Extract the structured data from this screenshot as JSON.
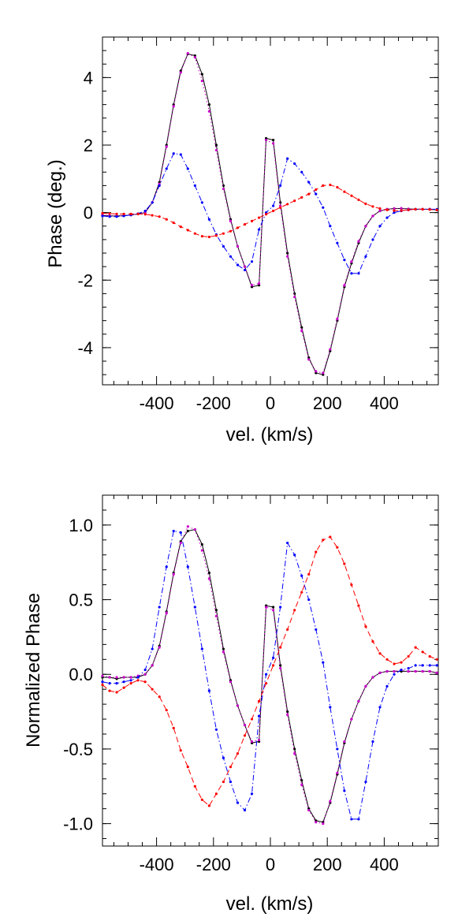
{
  "chart_data": [
    {
      "type": "line",
      "xlabel": "vel. (km/s)",
      "ylabel": "Phase (deg.)",
      "xlim": [
        -590,
        590
      ],
      "ylim": [
        -5.1,
        5.2
      ],
      "x_ticks": [
        -400,
        -200,
        0,
        200,
        400
      ],
      "y_ticks": [
        -4,
        -2,
        0,
        2,
        4
      ],
      "x_tick_labels": [
        "-400",
        "-200",
        "0",
        "200",
        "400"
      ],
      "y_tick_labels": [
        "-4",
        "-2",
        "0",
        "2",
        "4"
      ],
      "grid": false,
      "legend": "none",
      "x": [
        -590,
        -565,
        -540,
        -515,
        -490,
        -465,
        -440,
        -415,
        -390,
        -365,
        -340,
        -315,
        -290,
        -265,
        -240,
        -215,
        -190,
        -165,
        -140,
        -115,
        -90,
        -65,
        -40,
        -15,
        10,
        35,
        60,
        85,
        110,
        135,
        160,
        185,
        210,
        235,
        260,
        285,
        310,
        335,
        360,
        385,
        410,
        435,
        460,
        485,
        510,
        535,
        560,
        585
      ],
      "series": [
        {
          "color": "#000000",
          "style": "solid",
          "values": [
            -0.08,
            -0.1,
            -0.1,
            -0.09,
            -0.07,
            -0.04,
            0.0,
            0.3,
            0.9,
            2.0,
            3.2,
            4.2,
            4.7,
            4.65,
            4.1,
            3.2,
            2.0,
            0.8,
            -0.2,
            -1.0,
            -1.6,
            -2.2,
            -2.15,
            2.2,
            2.15,
            0.3,
            -1.2,
            -2.4,
            -3.4,
            -4.3,
            -4.75,
            -4.8,
            -4.1,
            -3.2,
            -2.2,
            -1.5,
            -0.9,
            -0.4,
            -0.1,
            0.05,
            0.1,
            0.12,
            0.12,
            0.11,
            0.1,
            0.1,
            0.1,
            0.08
          ]
        },
        {
          "color": "#cc00cc",
          "style": "dotted",
          "values": [
            -0.07,
            -0.09,
            -0.1,
            -0.09,
            -0.07,
            -0.04,
            0.0,
            0.3,
            0.85,
            1.95,
            3.15,
            4.15,
            4.72,
            4.6,
            3.9,
            3.0,
            1.85,
            0.7,
            -0.25,
            -1.0,
            -1.6,
            -2.15,
            -2.1,
            2.15,
            2.05,
            0.2,
            -1.3,
            -2.5,
            -3.5,
            -4.35,
            -4.7,
            -4.75,
            -4.05,
            -3.15,
            -2.15,
            -1.45,
            -0.85,
            -0.4,
            -0.1,
            0.05,
            0.1,
            0.12,
            0.13,
            0.11,
            0.1,
            0.1,
            0.1,
            0.08
          ]
        },
        {
          "color": "#0000ff",
          "style": "dashdot",
          "values": [
            -0.1,
            -0.12,
            -0.12,
            -0.1,
            -0.07,
            -0.03,
            0.05,
            0.3,
            0.8,
            1.3,
            1.75,
            1.72,
            1.3,
            0.8,
            0.3,
            -0.2,
            -0.65,
            -1.0,
            -1.3,
            -1.55,
            -1.7,
            -1.45,
            -0.5,
            0.0,
            0.2,
            0.8,
            1.6,
            1.45,
            1.2,
            0.9,
            0.55,
            0.15,
            -0.4,
            -0.9,
            -1.4,
            -1.8,
            -1.8,
            -1.3,
            -0.8,
            -0.4,
            -0.15,
            0.0,
            0.05,
            0.08,
            0.1,
            0.1,
            0.1,
            0.1
          ]
        },
        {
          "color": "#ff0000",
          "style": "dashed",
          "values": [
            -0.02,
            -0.03,
            -0.04,
            -0.04,
            -0.04,
            -0.04,
            -0.05,
            -0.08,
            -0.12,
            -0.2,
            -0.3,
            -0.42,
            -0.52,
            -0.62,
            -0.7,
            -0.72,
            -0.68,
            -0.62,
            -0.55,
            -0.45,
            -0.35,
            -0.25,
            -0.15,
            -0.05,
            0.05,
            0.15,
            0.25,
            0.35,
            0.45,
            0.55,
            0.68,
            0.8,
            0.82,
            0.75,
            0.62,
            0.5,
            0.38,
            0.26,
            0.18,
            0.12,
            0.08,
            0.06,
            0.06,
            0.08,
            0.1,
            0.1,
            0.09,
            0.08
          ]
        }
      ]
    },
    {
      "type": "line",
      "xlabel": "vel. (km/s)",
      "ylabel": "Normalized Phase",
      "xlim": [
        -590,
        590
      ],
      "ylim": [
        -1.15,
        1.2
      ],
      "x_ticks": [
        -400,
        -200,
        0,
        200,
        400
      ],
      "y_ticks": [
        -1.0,
        -0.5,
        0.0,
        0.5,
        1.0
      ],
      "x_tick_labels": [
        "-400",
        "-200",
        "0",
        "200",
        "400"
      ],
      "y_tick_labels": [
        "-1.0",
        "-0.5",
        "0.0",
        "0.5",
        "1.0"
      ],
      "grid": false,
      "legend": "none",
      "x": [
        -590,
        -565,
        -540,
        -515,
        -490,
        -465,
        -440,
        -415,
        -390,
        -365,
        -340,
        -315,
        -290,
        -265,
        -240,
        -215,
        -190,
        -165,
        -140,
        -115,
        -90,
        -65,
        -40,
        -15,
        10,
        35,
        60,
        85,
        110,
        135,
        160,
        185,
        210,
        235,
        260,
        285,
        310,
        335,
        360,
        385,
        410,
        435,
        460,
        485,
        510,
        535,
        560,
        585
      ],
      "series": [
        {
          "color": "#000000",
          "style": "solid",
          "values": [
            -0.02,
            -0.02,
            -0.03,
            -0.02,
            -0.02,
            -0.02,
            0.0,
            0.06,
            0.19,
            0.42,
            0.68,
            0.89,
            0.96,
            0.97,
            0.87,
            0.68,
            0.43,
            0.17,
            -0.04,
            -0.21,
            -0.34,
            -0.46,
            -0.45,
            0.46,
            0.45,
            0.06,
            -0.25,
            -0.5,
            -0.71,
            -0.9,
            -0.98,
            -0.99,
            -0.86,
            -0.67,
            -0.46,
            -0.3,
            -0.18,
            -0.08,
            -0.02,
            0.01,
            0.02,
            0.02,
            0.02,
            0.02,
            0.02,
            0.02,
            0.02,
            0.01
          ]
        },
        {
          "color": "#cc00cc",
          "style": "dotted",
          "values": [
            -0.01,
            -0.02,
            -0.02,
            -0.02,
            -0.02,
            -0.01,
            0.0,
            0.06,
            0.18,
            0.41,
            0.67,
            0.88,
            0.99,
            0.97,
            0.83,
            0.64,
            0.39,
            0.15,
            -0.05,
            -0.21,
            -0.34,
            -0.45,
            -0.44,
            0.45,
            0.43,
            0.04,
            -0.27,
            -0.53,
            -0.74,
            -0.91,
            -0.99,
            -1.0,
            -0.85,
            -0.66,
            -0.45,
            -0.3,
            -0.18,
            -0.08,
            -0.02,
            0.01,
            0.02,
            0.02,
            0.03,
            0.02,
            0.02,
            0.02,
            0.02,
            0.01
          ]
        },
        {
          "color": "#0000ff",
          "style": "dashdot",
          "values": [
            -0.05,
            -0.06,
            -0.06,
            -0.05,
            -0.04,
            -0.02,
            0.03,
            0.17,
            0.45,
            0.72,
            0.96,
            0.95,
            0.72,
            0.45,
            0.17,
            -0.11,
            -0.37,
            -0.56,
            -0.72,
            -0.86,
            -0.91,
            -0.8,
            -0.28,
            0.0,
            0.11,
            0.45,
            0.88,
            0.8,
            0.66,
            0.5,
            0.3,
            0.08,
            -0.22,
            -0.5,
            -0.78,
            -0.97,
            -0.97,
            -0.72,
            -0.45,
            -0.22,
            -0.08,
            0.0,
            0.03,
            0.04,
            0.06,
            0.06,
            0.06,
            0.06
          ]
        },
        {
          "color": "#ff0000",
          "style": "dashed",
          "values": [
            -0.07,
            -0.11,
            -0.12,
            -0.09,
            -0.06,
            -0.04,
            -0.05,
            -0.1,
            -0.15,
            -0.24,
            -0.36,
            -0.51,
            -0.62,
            -0.75,
            -0.84,
            -0.88,
            -0.8,
            -0.72,
            -0.62,
            -0.53,
            -0.41,
            -0.3,
            -0.18,
            -0.06,
            0.06,
            0.18,
            0.3,
            0.43,
            0.55,
            0.67,
            0.82,
            0.9,
            0.92,
            0.85,
            0.74,
            0.6,
            0.46,
            0.32,
            0.22,
            0.14,
            0.1,
            0.07,
            0.08,
            0.12,
            0.18,
            0.15,
            0.12,
            0.1
          ]
        }
      ]
    }
  ]
}
